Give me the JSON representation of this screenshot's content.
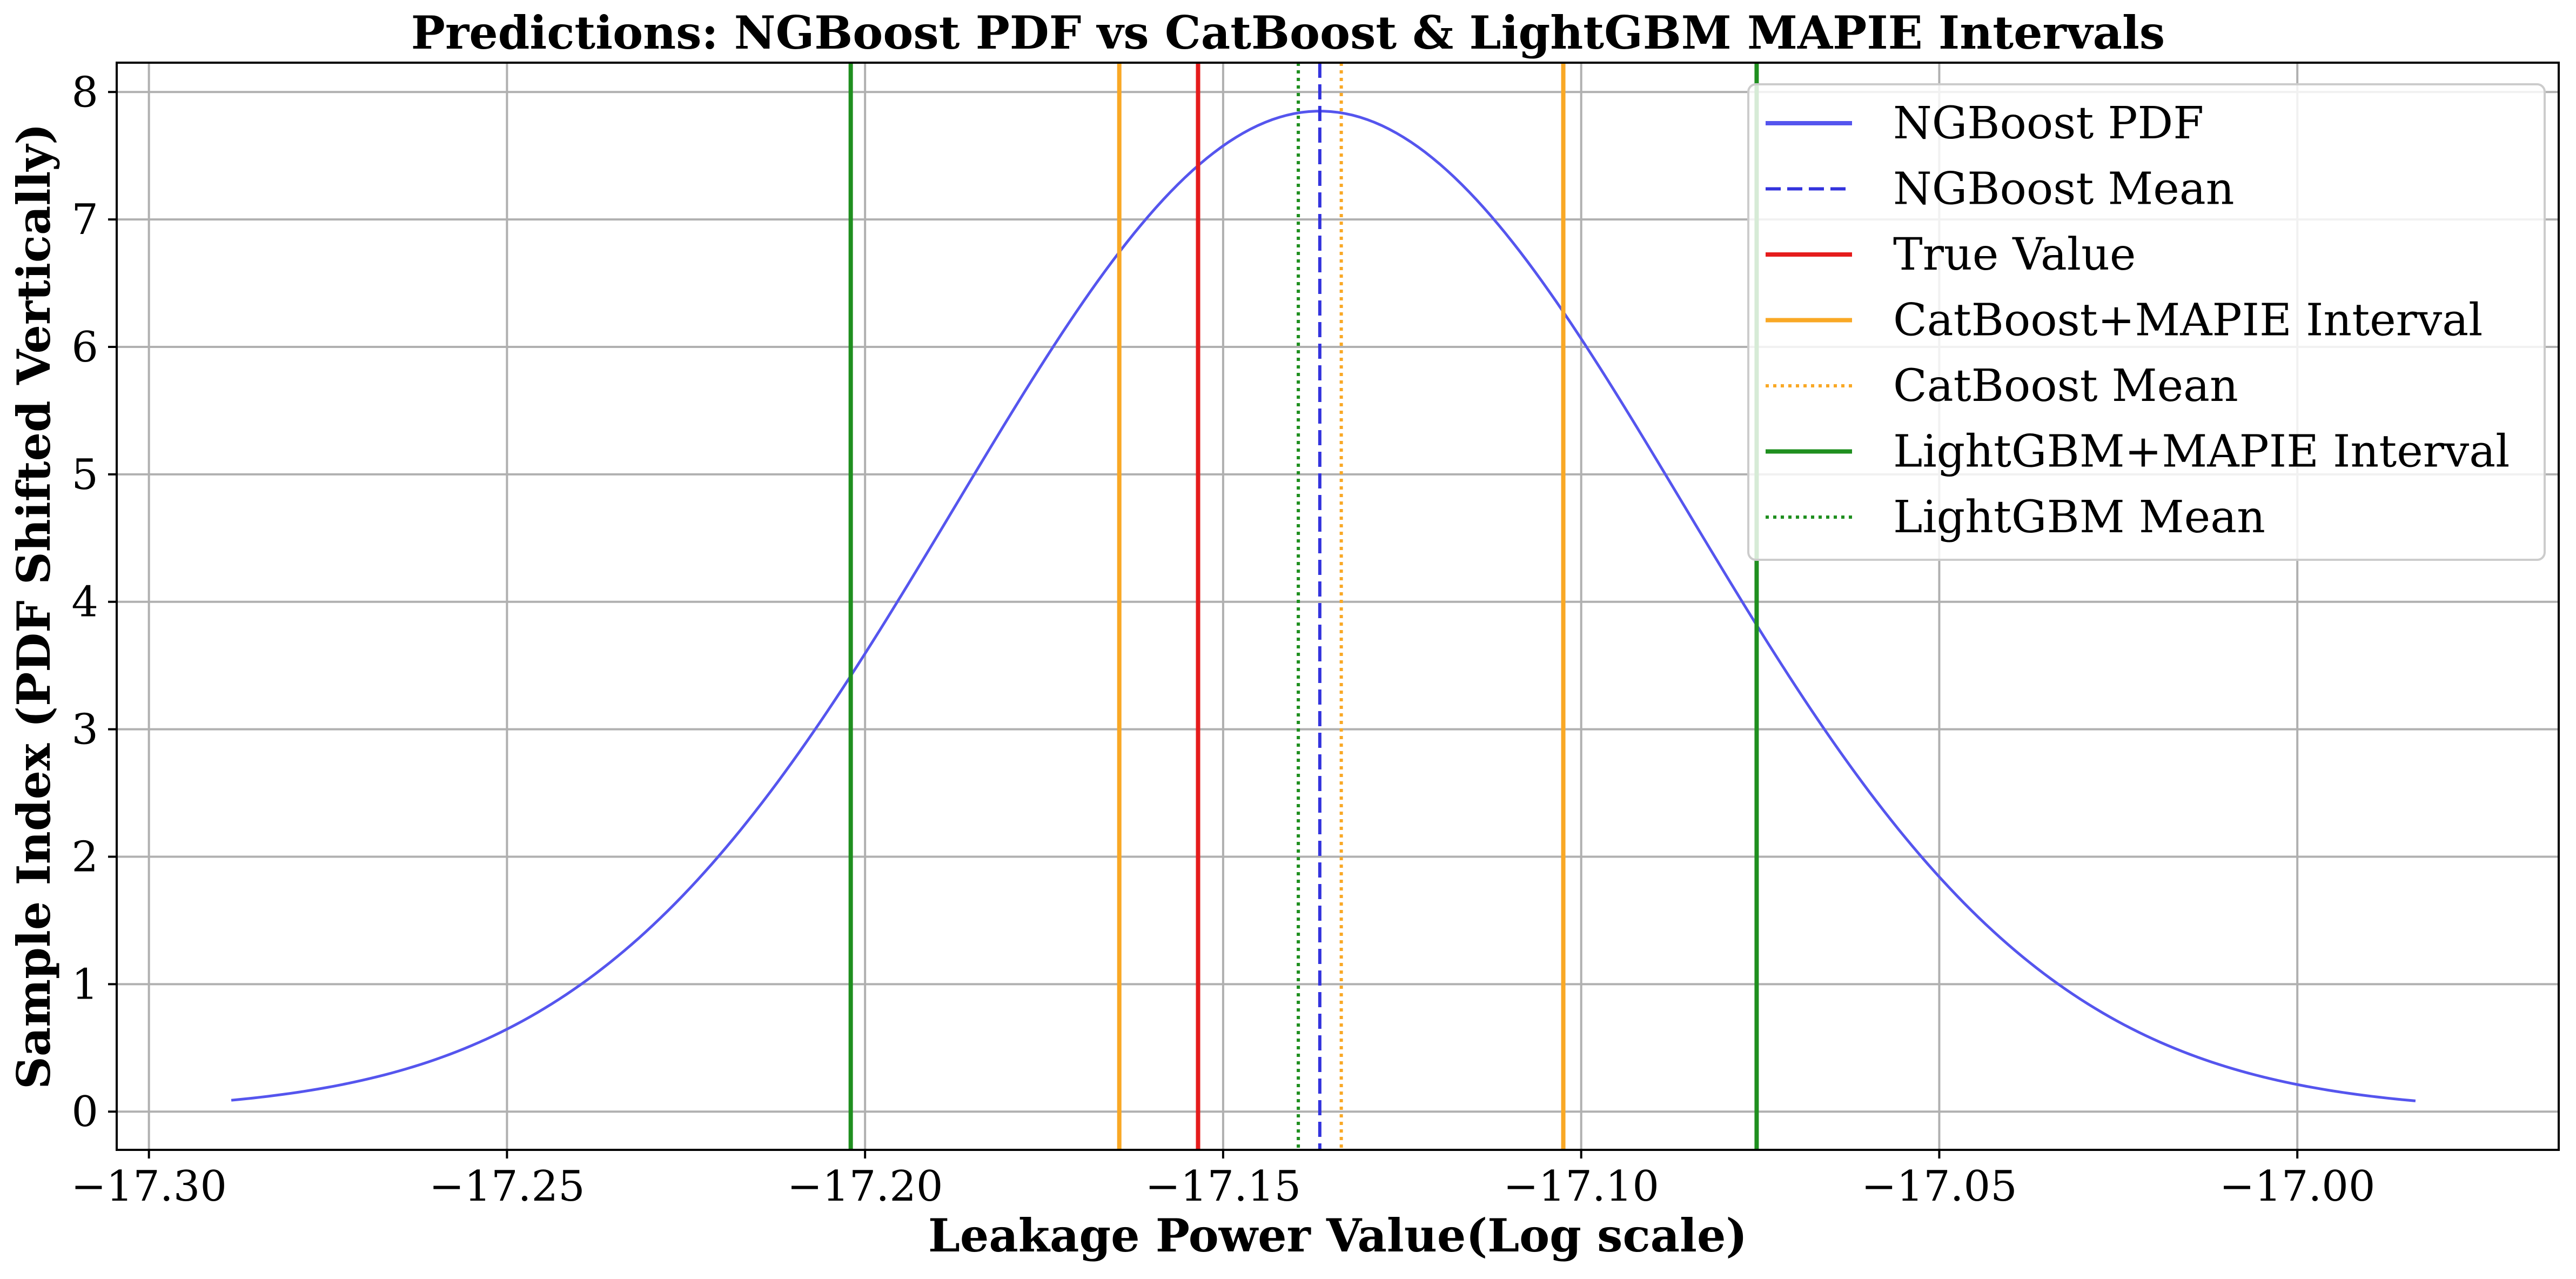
{
  "chart_data": {
    "type": "line",
    "title": "Predictions: NGBoost PDF vs CatBoost & LightGBM MAPIE Intervals",
    "xlabel": "Leakage Power Value(Log scale)",
    "ylabel": "Sample Index (PDF Shifted Vertically)",
    "xlim": [
      -17.3045,
      -16.9635
    ],
    "ylim": [
      -0.3,
      8.23
    ],
    "x_ticks": [
      -17.3,
      -17.25,
      -17.2,
      -17.15,
      -17.1,
      -17.05,
      -17.0
    ],
    "x_tick_labels": [
      "−17.30",
      "−17.25",
      "−17.20",
      "−17.15",
      "−17.10",
      "−17.05",
      "−17.00"
    ],
    "y_ticks": [
      0,
      1,
      2,
      3,
      4,
      5,
      6,
      7,
      8
    ],
    "y_tick_labels": [
      "0",
      "1",
      "2",
      "3",
      "4",
      "5",
      "6",
      "7",
      "8"
    ],
    "grid": true,
    "legend_position": "top-right",
    "pdf": {
      "name": "NGBoost PDF",
      "color": "#5555ee",
      "mean": -17.1365,
      "sigma": 0.0508,
      "peak": 7.85,
      "x_range": [
        -17.2885,
        -16.9835
      ]
    },
    "vlines": [
      {
        "name": "NGBoost Mean",
        "x": -17.1365,
        "color": "#3333dd",
        "style": "dashed"
      },
      {
        "name": "True Value",
        "x": -17.1535,
        "color": "#e51c1c",
        "style": "solid"
      },
      {
        "name": "CatBoost+MAPIE Interval",
        "x": [
          -17.1645,
          -17.1025
        ],
        "color": "#f9a825",
        "style": "solid"
      },
      {
        "name": "CatBoost Mean",
        "x": -17.1335,
        "color": "#f9a825",
        "style": "dotted"
      },
      {
        "name": "LightGBM+MAPIE Interval",
        "x": [
          -17.202,
          -17.0755
        ],
        "color": "#1f8f1f",
        "style": "solid"
      },
      {
        "name": "LightGBM Mean",
        "x": -17.1395,
        "color": "#1f8f1f",
        "style": "dotted"
      }
    ],
    "legend": [
      {
        "label": "NGBoost PDF",
        "color": "#5555ee",
        "style": "solid"
      },
      {
        "label": "NGBoost Mean",
        "color": "#3333dd",
        "style": "dashed"
      },
      {
        "label": "True Value",
        "color": "#e51c1c",
        "style": "solid"
      },
      {
        "label": "CatBoost+MAPIE Interval",
        "color": "#f9a825",
        "style": "solid"
      },
      {
        "label": "CatBoost Mean",
        "color": "#f9a825",
        "style": "dotted"
      },
      {
        "label": "LightGBM+MAPIE Interval",
        "color": "#1f8f1f",
        "style": "solid"
      },
      {
        "label": "LightGBM Mean",
        "color": "#1f8f1f",
        "style": "dotted"
      }
    ]
  }
}
